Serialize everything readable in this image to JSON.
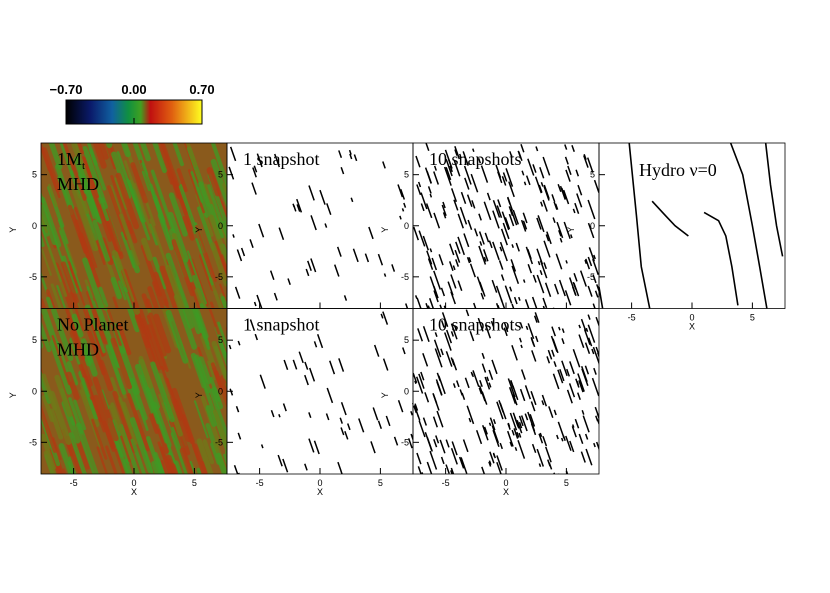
{
  "colorbar": {
    "range": [
      -0.7,
      0.7
    ],
    "ticks": [
      {
        "value": -0.7,
        "label": "−0.70"
      },
      {
        "value": 0,
        "label": "0.00"
      },
      {
        "value": 0.7,
        "label": "0.70"
      }
    ]
  },
  "axes": {
    "xlim": [
      -7.7,
      7.7
    ],
    "ylim": [
      -8.1,
      8.1
    ],
    "xticks": [
      -5,
      0,
      5
    ],
    "yticks": [
      -5,
      0,
      5
    ],
    "xlabel": "X",
    "ylabel": "Y"
  },
  "panels": [
    {
      "kind": "field",
      "title": "1M",
      "title_sub": "t",
      "title2": "MHD"
    },
    {
      "kind": "streaks",
      "title": "1 snapshot",
      "density": 1
    },
    {
      "kind": "streaks",
      "title": "10 snapshots",
      "density": 10
    },
    {
      "kind": "hydro",
      "title": "Hydro ν=0"
    },
    {
      "kind": "field",
      "title": "No Planet",
      "title2": "MHD"
    },
    {
      "kind": "streaks",
      "title": "1 snapshot",
      "density": 1
    },
    {
      "kind": "streaks",
      "title": "10 snapshots",
      "density": 10
    }
  ]
}
